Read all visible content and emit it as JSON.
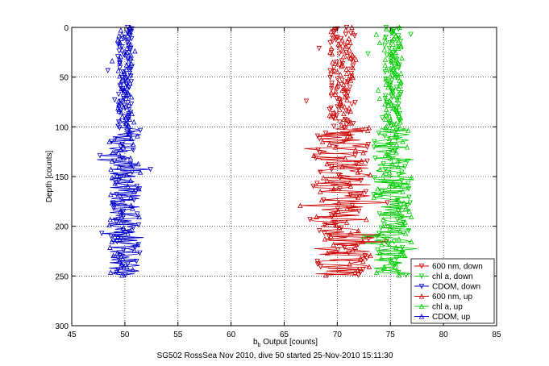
{
  "chart_data": {
    "type": "scatter",
    "xlabel_main": "b",
    "xlabel_sub": "b",
    "xlabel_rest": " Output [counts]",
    "ylabel": "Depth [counts]",
    "caption": "SG502 RossSea Nov 2010, dive 50 started 25-Nov-2010 15:11:30",
    "xlim": [
      45,
      85
    ],
    "ylim": [
      0,
      300
    ],
    "y_reversed": true,
    "grid": true,
    "xticks": [
      45,
      50,
      55,
      60,
      65,
      70,
      75,
      80,
      85
    ],
    "yticks": [
      0,
      50,
      100,
      150,
      200,
      250,
      300
    ],
    "legend_position": "lower-right",
    "series": [
      {
        "name": "600 nm, down",
        "color": "#cc0000",
        "marker": "triangle-down",
        "center": 70.5,
        "spread": 2.8,
        "depth_min": 0,
        "depth_max": 250,
        "sparse_above": 100,
        "seed": 11
      },
      {
        "name": "chl a, down",
        "color": "#00cc00",
        "marker": "triangle-down",
        "center": 75.2,
        "spread": 1.8,
        "depth_min": 0,
        "depth_max": 250,
        "sparse_above": 100,
        "seed": 23
      },
      {
        "name": "CDOM, down",
        "color": "#0000cc",
        "marker": "triangle-down",
        "center": 50,
        "spread": 1.5,
        "depth_min": 0,
        "depth_max": 250,
        "sparse_above": 100,
        "seed": 37
      },
      {
        "name": "600 nm, up",
        "color": "#cc0000",
        "marker": "triangle-up",
        "center": 70.5,
        "spread": 2.8,
        "depth_min": 0,
        "depth_max": 250,
        "sparse_above": 100,
        "seed": 41
      },
      {
        "name": "chl a, up",
        "color": "#00cc00",
        "marker": "triangle-up",
        "center": 75.2,
        "spread": 1.8,
        "depth_min": 0,
        "depth_max": 250,
        "sparse_above": 100,
        "seed": 53
      },
      {
        "name": "CDOM, up",
        "color": "#0000cc",
        "marker": "triangle-up",
        "center": 50,
        "spread": 1.5,
        "depth_min": 0,
        "depth_max": 250,
        "sparse_above": 100,
        "seed": 67
      }
    ]
  }
}
